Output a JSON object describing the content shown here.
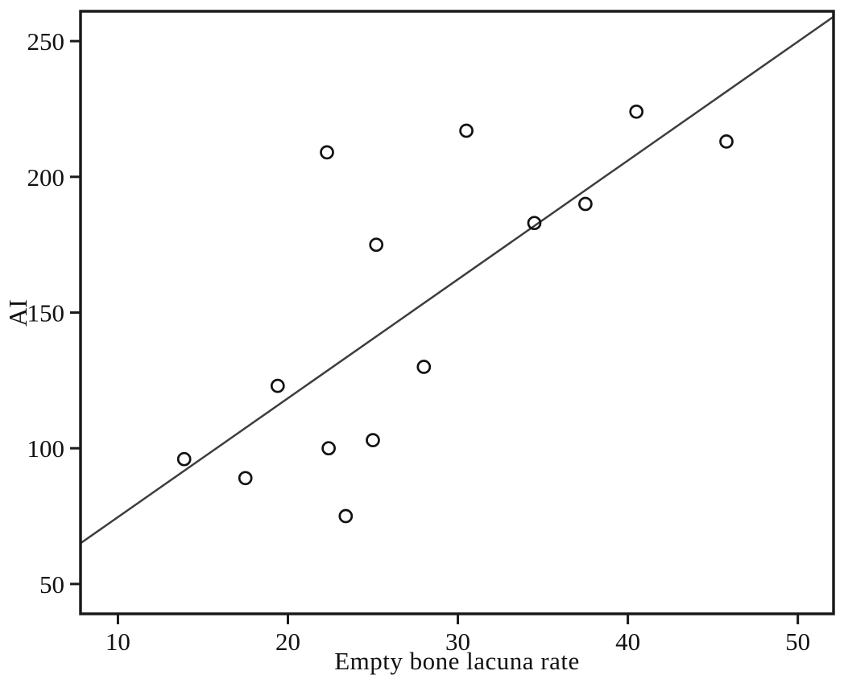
{
  "figure": {
    "background": "#ffffff"
  },
  "chart_data": {
    "type": "scatter",
    "title": "",
    "xlabel": "Empty bone lacuna rate",
    "ylabel": "AI",
    "xlim": [
      7.8,
      52.1
    ],
    "ylim": [
      39,
      261
    ],
    "x_ticks": [
      10,
      20,
      30,
      40,
      50
    ],
    "y_ticks": [
      50,
      100,
      150,
      200,
      250
    ],
    "grid": false,
    "legend": "none",
    "points": [
      {
        "x": 13.9,
        "y": 96
      },
      {
        "x": 17.5,
        "y": 89
      },
      {
        "x": 19.4,
        "y": 123
      },
      {
        "x": 22.3,
        "y": 209
      },
      {
        "x": 22.4,
        "y": 100
      },
      {
        "x": 23.4,
        "y": 75
      },
      {
        "x": 25.0,
        "y": 103
      },
      {
        "x": 25.2,
        "y": 175
      },
      {
        "x": 28.0,
        "y": 130
      },
      {
        "x": 30.5,
        "y": 217
      },
      {
        "x": 34.5,
        "y": 183
      },
      {
        "x": 37.5,
        "y": 190
      },
      {
        "x": 40.5,
        "y": 224
      },
      {
        "x": 45.8,
        "y": 213
      }
    ],
    "trendline": {
      "x1": 7.8,
      "y1": 65,
      "x2": 52.1,
      "y2": 259
    },
    "marker": {
      "shape": "open-circle",
      "radius_px": 7.5,
      "stroke": "#111111",
      "fill": "none"
    },
    "colors": {
      "axis": "#1a1a1a",
      "trendline": "#3d3d3d",
      "tick_text": "#111111"
    }
  }
}
